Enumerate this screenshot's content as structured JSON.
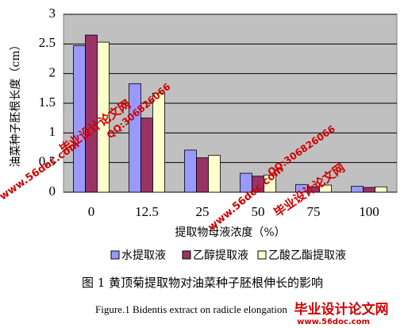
{
  "chart_data": {
    "type": "bar",
    "y_label": "油菜种子胚根长度（cm）",
    "x_label": "提取物母液浓度（%）",
    "categories": [
      "0",
      "12.5",
      "25",
      "50",
      "75",
      "100"
    ],
    "series": [
      {
        "name": "水提取液",
        "color": "#9999ff",
        "values": [
          2.47,
          1.83,
          0.71,
          0.32,
          0.13,
          0.1
        ]
      },
      {
        "name": "乙醇提取液",
        "color": "#993366",
        "values": [
          2.65,
          1.25,
          0.58,
          0.27,
          0.09,
          0.08
        ]
      },
      {
        "name": "乙酸乙酯提取液",
        "color": "#ffffcc",
        "values": [
          2.53,
          1.67,
          0.62,
          0.29,
          0.12,
          0.09
        ]
      }
    ],
    "ylim": [
      0,
      3
    ],
    "yticks": [
      0,
      0.5,
      1,
      1.5,
      2,
      2.5,
      3
    ],
    "grid": true,
    "legend": "bottom",
    "caption_cn": "图 1  黄顶菊提取物对油菜种子胚根伸长的影响",
    "caption_en": "Figure.1 Bidentis extract on radicle elongation",
    "watermarks": [
      "毕业设计论文网",
      "www.56doc.com",
      "QQ:306826066",
      "www.56doc.com",
      "QQ:306826066",
      "毕业设计论文网",
      "毕业设计论文网",
      "www.56doc.com"
    ]
  }
}
